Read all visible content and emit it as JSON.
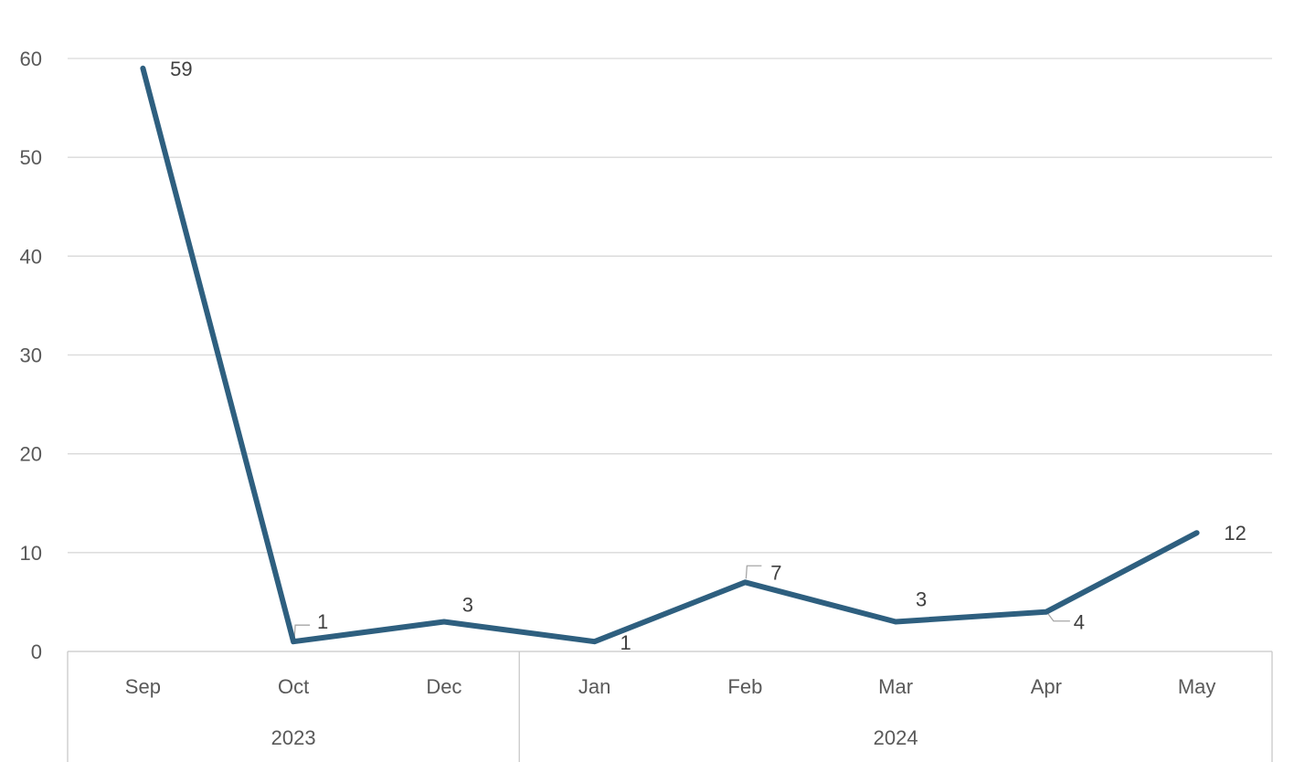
{
  "chart_data": {
    "type": "line",
    "title": "",
    "xlabel": "",
    "ylabel": "",
    "ylim": [
      0,
      60
    ],
    "yticks": [
      0,
      10,
      20,
      30,
      40,
      50,
      60
    ],
    "grid": true,
    "legend": "none",
    "categories": [
      "Sep",
      "Oct",
      "Dec",
      "Jan",
      "Feb",
      "Mar",
      "Apr",
      "May"
    ],
    "groups": [
      {
        "label": "2023",
        "count": 3
      },
      {
        "label": "2024",
        "count": 5
      }
    ],
    "series": [
      {
        "values": [
          59,
          1,
          3,
          1,
          7,
          3,
          4,
          12
        ],
        "color": "#2e5f7f"
      }
    ],
    "data_labels": [
      "59",
      "1",
      "3",
      "1",
      "7",
      "3",
      "4",
      "12"
    ]
  }
}
